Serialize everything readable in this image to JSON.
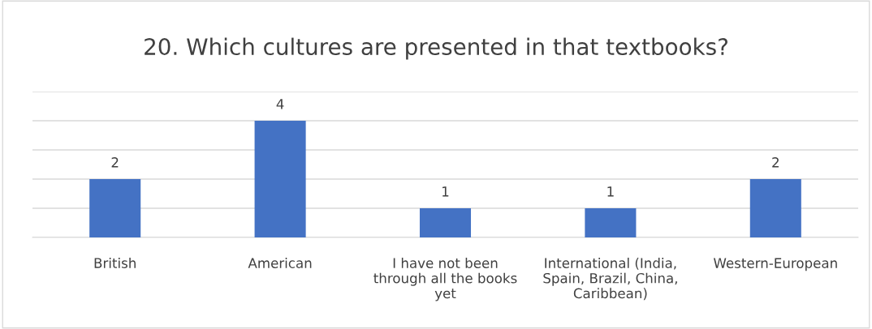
{
  "chart_data": {
    "type": "bar",
    "title": "20. Which cultures are presented in that textbooks?",
    "categories": [
      "British",
      "American",
      "I have not been through all the books yet",
      "International (India, Spain, Brazil, China, Caribbean)",
      "Western-European"
    ],
    "values": [
      2,
      4,
      1,
      1,
      2
    ],
    "color": "#4472c4",
    "ylim": [
      0,
      5
    ],
    "yticks": [
      {
        "value": 0,
        "label": null
      },
      {
        "value": 1,
        "label": null
      },
      {
        "value": 2,
        "label": null
      },
      {
        "value": 3,
        "label": null
      },
      {
        "value": 4,
        "label": null
      },
      {
        "value": 5,
        "label": null
      }
    ],
    "grid": "y",
    "data_labels": true,
    "tick_labels": "x"
  }
}
